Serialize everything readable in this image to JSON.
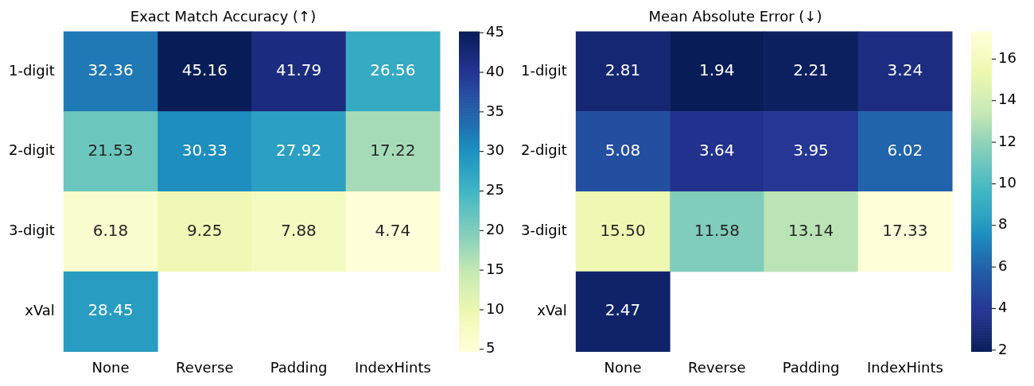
{
  "chart_data": [
    {
      "type": "heatmap",
      "title": "Exact Match Accuracy (↑)",
      "categories": [
        "None",
        "Reverse",
        "Padding",
        "IndexHints"
      ],
      "y_categories": [
        "1-digit",
        "2-digit",
        "3-digit",
        "xVal"
      ],
      "cells": [
        [
          32.36,
          45.16,
          41.79,
          26.56
        ],
        [
          21.53,
          30.33,
          27.92,
          17.22
        ],
        [
          6.18,
          9.25,
          7.88,
          4.74
        ],
        [
          28.45,
          null,
          null,
          null
        ]
      ],
      "clim": [
        4.74,
        45.16
      ],
      "cticks": [
        5,
        10,
        15,
        20,
        25,
        30,
        35,
        40,
        45
      ],
      "data_labels": true
    },
    {
      "type": "heatmap",
      "title": "Mean Absolute Error (↓)",
      "categories": [
        "None",
        "Reverse",
        "Padding",
        "IndexHints"
      ],
      "y_categories": [
        "1-digit",
        "2-digit",
        "3-digit",
        "xVal"
      ],
      "cells": [
        [
          2.81,
          1.94,
          2.21,
          3.24
        ],
        [
          5.08,
          3.64,
          3.95,
          6.02
        ],
        [
          15.5,
          11.58,
          13.14,
          17.33
        ],
        [
          2.47,
          null,
          null,
          null
        ]
      ],
      "cell_labels": [
        [
          "2.81",
          "1.94",
          "2.21",
          "3.24"
        ],
        [
          "5.08",
          "3.64",
          "3.95",
          "6.02"
        ],
        [
          "15.50",
          "11.58",
          "13.14",
          "17.33"
        ],
        [
          "2.47",
          null,
          null,
          null
        ]
      ],
      "clim": [
        17.33,
        1.94
      ],
      "cticks": [
        2,
        4,
        6,
        8,
        10,
        12,
        14,
        16
      ],
      "data_labels": true
    }
  ]
}
